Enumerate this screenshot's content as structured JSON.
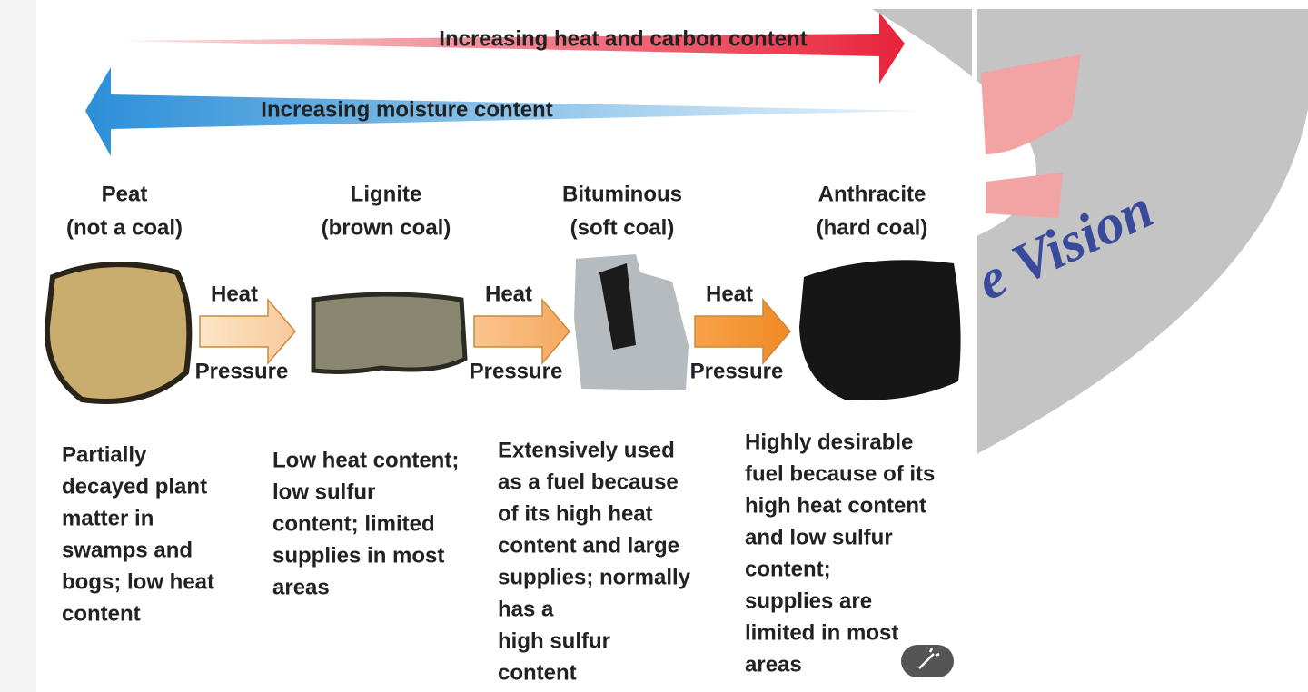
{
  "arrows": {
    "heat_carbon": "Increasing heat and carbon content",
    "moisture": "Increasing moisture content"
  },
  "stages": [
    {
      "name": "Peat",
      "subtitle": "(not a coal)",
      "description": [
        "Partially",
        "decayed plant",
        "matter in",
        "swamps and",
        "bogs; low heat",
        "content"
      ]
    },
    {
      "name": "Lignite",
      "subtitle": "(brown coal)",
      "description": [
        "Low heat content;",
        "low sulfur",
        "content; limited",
        "supplies in most",
        "areas"
      ]
    },
    {
      "name": "Bituminous",
      "subtitle": "(soft coal)",
      "description": [
        "Extensively used",
        "as a fuel because",
        "of its high heat",
        "content and large",
        "supplies; normally",
        "has a",
        "high sulfur",
        "content"
      ]
    },
    {
      "name": "Anthracite",
      "subtitle": "(hard coal)",
      "description": [
        "Highly desirable",
        "fuel because of its",
        "high heat content",
        "and low sulfur",
        "content;",
        "supplies are",
        "limited in most",
        "areas"
      ]
    }
  ],
  "transitions": [
    {
      "top": "Heat",
      "bottom": "Pressure"
    },
    {
      "top": "Heat",
      "bottom": "Pressure"
    },
    {
      "top": "Heat",
      "bottom": "Pressure"
    }
  ],
  "watermark": "e Vision"
}
